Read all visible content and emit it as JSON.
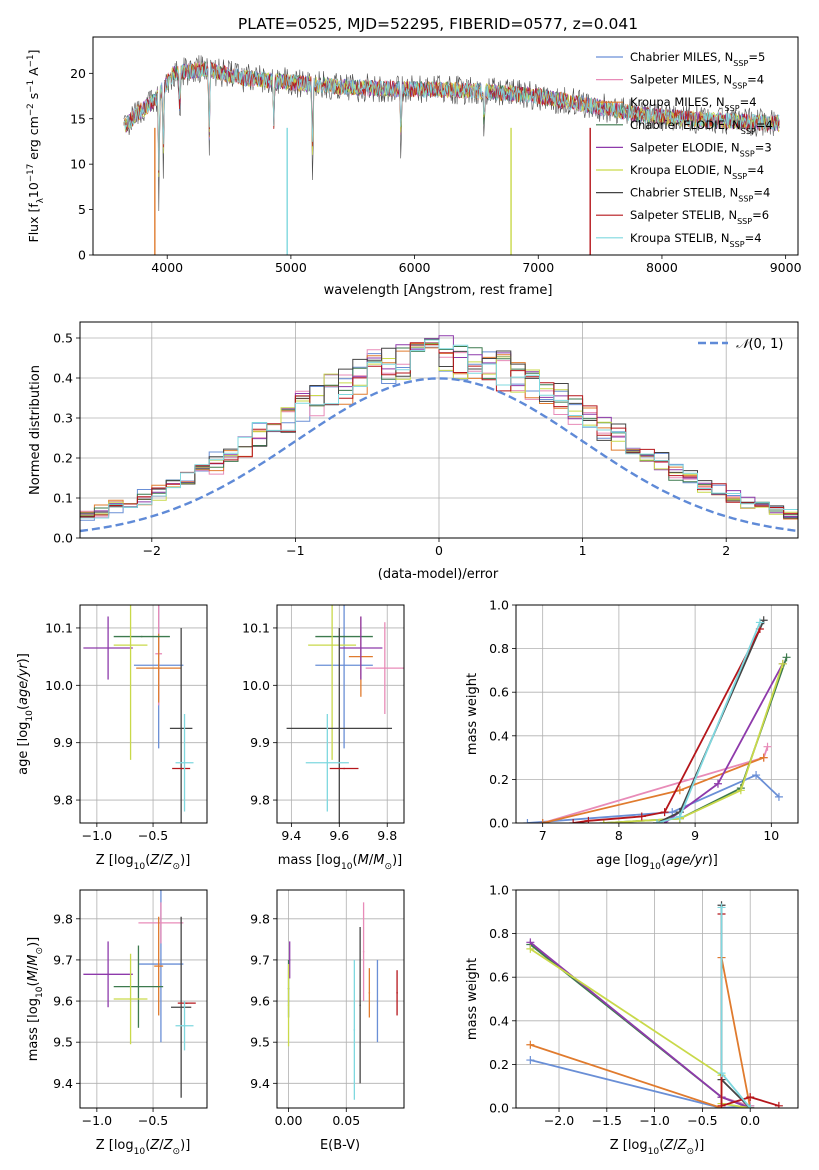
{
  "title": "PLATE=0525, MJD=52295, FIBERID=0577, z=0.041",
  "colors": [
    "#6a8fd6",
    "#e88bb8",
    "#e07b2e",
    "#3d7a4e",
    "#8e3aab",
    "#c9d94a",
    "#444444",
    "#b5161b",
    "#7fd8df"
  ],
  "legend": [
    "Chabrier MILES, N$_{SSP}$=5",
    "Salpeter MILES, N$_{SSP}$=4",
    "Kroupa MILES, N$_{SSP}$=4",
    "Chabrier ELODIE, N$_{SSP}$=4",
    "Salpeter ELODIE, N$_{SSP}$=3",
    "Kroupa ELODIE, N$_{SSP}$=4",
    "Chabrier STELIB, N$_{SSP}$=4",
    "Salpeter STELIB, N$_{SSP}$=6",
    "Kroupa STELIB, N$_{SSP}$=4"
  ],
  "legend_display": [
    {
      "pre": "Chabrier MILES, N",
      "sub": "SSP",
      "post": "=5"
    },
    {
      "pre": "Salpeter MILES, N",
      "sub": "SSP",
      "post": "=4"
    },
    {
      "pre": "Kroupa MILES, N",
      "sub": "SSP",
      "post": "=4"
    },
    {
      "pre": "Chabrier ELODIE, N",
      "sub": "SSP",
      "post": "=4"
    },
    {
      "pre": "Salpeter ELODIE, N",
      "sub": "SSP",
      "post": "=3"
    },
    {
      "pre": "Kroupa ELODIE, N",
      "sub": "SSP",
      "post": "=4"
    },
    {
      "pre": "Chabrier STELIB, N",
      "sub": "SSP",
      "post": "=4"
    },
    {
      "pre": "Salpeter STELIB, N",
      "sub": "SSP",
      "post": "=6"
    },
    {
      "pre": "Kroupa STELIB, N",
      "sub": "SSP",
      "post": "=4"
    }
  ],
  "chart_data": [
    {
      "id": "spectrum",
      "type": "line",
      "xlabel": "wavelength [Angstrom, rest frame]",
      "ylabel": "Flux [f_λ 10^-17 erg cm^-2 s^-1 A^-1]",
      "xlim": [
        3400,
        9100
      ],
      "ylim": [
        0,
        24
      ],
      "xticks": [
        4000,
        5000,
        6000,
        7000,
        8000,
        9000
      ],
      "yticks": [
        0,
        5,
        10,
        15,
        20
      ],
      "data_range": [
        3650,
        8950
      ],
      "continuum": [
        [
          3650,
          14
        ],
        [
          3750,
          15.5
        ],
        [
          3900,
          17
        ],
        [
          4050,
          20
        ],
        [
          4300,
          20.5
        ],
        [
          4600,
          19.5
        ],
        [
          5000,
          19
        ],
        [
          5400,
          18.5
        ],
        [
          5800,
          18.3
        ],
        [
          6200,
          18.2
        ],
        [
          6600,
          18
        ],
        [
          7000,
          17.5
        ],
        [
          7400,
          16.5
        ],
        [
          7800,
          15.5
        ],
        [
          8200,
          15
        ],
        [
          8600,
          14.7
        ],
        [
          8950,
          14.5
        ]
      ],
      "features": [
        [
          3933,
          13
        ],
        [
          3968,
          9
        ],
        [
          4102,
          6
        ],
        [
          4340,
          10
        ],
        [
          4861,
          7
        ],
        [
          5175,
          11
        ],
        [
          5890,
          8
        ],
        [
          6563,
          6
        ]
      ]
    },
    {
      "id": "residuals",
      "type": "histogram",
      "xlabel": "(data-model)/error",
      "ylabel": "Normed distribution",
      "xlim": [
        -2.5,
        2.5
      ],
      "ylim": [
        0,
        0.54
      ],
      "xticks": [
        -2,
        -1,
        0,
        1,
        2
      ],
      "yticks": [
        0.0,
        0.1,
        0.2,
        0.3,
        0.4,
        0.5
      ],
      "bin_width": 0.1,
      "reference_label": "$\\mathcal{N}(0,1)$",
      "reference": "gaussian(0,1)"
    },
    {
      "id": "age-vs-Z",
      "type": "errorbar",
      "xlabel": "Z [log10(Z/Z☉)]",
      "ylabel": "age  [log10(age/yr)]",
      "xlim": [
        -1.15,
        -0.02
      ],
      "ylim": [
        9.76,
        10.14
      ],
      "xticks": [
        -1.0,
        -0.5
      ],
      "yticks": [
        9.8,
        9.9,
        10.0,
        10.1
      ],
      "points": [
        {
          "x": -0.45,
          "y": 10.035,
          "xerr": 0.22,
          "yerr": 0.145
        },
        {
          "x": -0.45,
          "y": 10.055,
          "xerr": 0.03,
          "yerr": 0.09
        },
        {
          "x": -0.45,
          "y": 10.03,
          "xerr": 0.2,
          "yerr": 0.06
        },
        {
          "x": -0.6,
          "y": 10.085,
          "xerr": 0.25,
          "yerr": 0.0
        },
        {
          "x": -0.9,
          "y": 10.065,
          "xerr": 0.22,
          "yerr": 0.055
        },
        {
          "x": -0.7,
          "y": 10.07,
          "xerr": 0.15,
          "yerr": 0.2
        },
        {
          "x": -0.25,
          "y": 9.925,
          "xerr": 0.1,
          "yerr": 0.175
        },
        {
          "x": -0.25,
          "y": 9.855,
          "xerr": 0.08,
          "yerr": 0.0
        },
        {
          "x": -0.22,
          "y": 9.865,
          "xerr": 0.08,
          "yerr": 0.085
        }
      ]
    },
    {
      "id": "age-vs-mass",
      "type": "errorbar",
      "xlabel": "mass [log10(M/M☉)]",
      "ylabel": "",
      "xlim": [
        9.34,
        9.87
      ],
      "ylim": [
        9.76,
        10.14
      ],
      "xticks": [
        9.4,
        9.6,
        9.8
      ],
      "yticks": [
        9.8,
        9.9,
        10.0,
        10.1
      ],
      "points": [
        {
          "x": 9.62,
          "y": 10.035,
          "xerr": 0.12,
          "yerr": 0.145
        },
        {
          "x": 9.79,
          "y": 10.03,
          "xerr": 0.08,
          "yerr": 0.08
        },
        {
          "x": 9.69,
          "y": 10.05,
          "xerr": 0.05,
          "yerr": 0.07
        },
        {
          "x": 9.62,
          "y": 10.085,
          "xerr": 0.12,
          "yerr": 0.0
        },
        {
          "x": 9.69,
          "y": 10.065,
          "xerr": 0.09,
          "yerr": 0.055
        },
        {
          "x": 9.57,
          "y": 10.07,
          "xerr": 0.1,
          "yerr": 0.2
        },
        {
          "x": 9.6,
          "y": 9.925,
          "xerr": 0.22,
          "yerr": 0.175
        },
        {
          "x": 9.62,
          "y": 9.855,
          "xerr": 0.06,
          "yerr": 0.0
        },
        {
          "x": 9.55,
          "y": 9.865,
          "xerr": 0.09,
          "yerr": 0.085
        }
      ]
    },
    {
      "id": "weight-vs-age",
      "type": "line",
      "xlabel": "age  [log10(age/yr)]",
      "ylabel": "mass weight",
      "xlim": [
        6.65,
        10.35
      ],
      "ylim": [
        0,
        1.0
      ],
      "xticks": [
        7,
        8,
        9,
        10
      ],
      "yticks": [
        0.0,
        0.2,
        0.4,
        0.6,
        0.8,
        1.0
      ],
      "series": [
        {
          "x": [
            6.8,
            8.7,
            9.8,
            10.1
          ],
          "y": [
            0.0,
            0.05,
            0.22,
            0.12
          ]
        },
        {
          "x": [
            7.0,
            9.9,
            9.95
          ],
          "y": [
            0.0,
            0.3,
            0.35
          ]
        },
        {
          "x": [
            7.0,
            8.8,
            9.9
          ],
          "y": [
            0.0,
            0.15,
            0.3
          ]
        },
        {
          "x": [
            7.8,
            8.8,
            9.6,
            10.2
          ],
          "y": [
            0.0,
            0.02,
            0.16,
            0.76
          ]
        },
        {
          "x": [
            8.6,
            9.3,
            10.15
          ],
          "y": [
            0.0,
            0.18,
            0.73
          ]
        },
        {
          "x": [
            7.8,
            8.8,
            9.6,
            10.15
          ],
          "y": [
            0.0,
            0.02,
            0.15,
            0.73
          ]
        },
        {
          "x": [
            8.5,
            8.8,
            9.9
          ],
          "y": [
            0.0,
            0.05,
            0.93
          ]
        },
        {
          "x": [
            7.4,
            7.6,
            8.3,
            8.6,
            9.85
          ],
          "y": [
            0.0,
            0.01,
            0.03,
            0.05,
            0.89
          ]
        },
        {
          "x": [
            8.5,
            8.8,
            9.85
          ],
          "y": [
            0.0,
            0.03,
            0.92
          ]
        }
      ]
    },
    {
      "id": "mass-vs-Z",
      "type": "errorbar",
      "xlabel": "Z [log10(Z/Z☉)]",
      "ylabel": "mass [log10(M/M☉)]",
      "xlim": [
        -1.15,
        -0.02
      ],
      "ylim": [
        9.34,
        9.87
      ],
      "xticks": [
        -1.0,
        -0.5
      ],
      "yticks": [
        9.4,
        9.5,
        9.6,
        9.7,
        9.8
      ],
      "points": [
        {
          "x": -0.43,
          "y": 9.69,
          "xerr": 0.2,
          "yerr": 0.19
        },
        {
          "x": -0.43,
          "y": 9.79,
          "xerr": 0.2,
          "yerr": 0.05
        },
        {
          "x": -0.45,
          "y": 9.685,
          "xerr": 0.04,
          "yerr": 0.12
        },
        {
          "x": -0.63,
          "y": 9.635,
          "xerr": 0.22,
          "yerr": 0.1
        },
        {
          "x": -0.9,
          "y": 9.665,
          "xerr": 0.22,
          "yerr": 0.08
        },
        {
          "x": -0.7,
          "y": 9.605,
          "xerr": 0.15,
          "yerr": 0.11
        },
        {
          "x": -0.25,
          "y": 9.585,
          "xerr": 0.09,
          "yerr": 0.22
        },
        {
          "x": -0.2,
          "y": 9.595,
          "xerr": 0.08,
          "yerr": 0.0
        },
        {
          "x": -0.22,
          "y": 9.54,
          "xerr": 0.08,
          "yerr": 0.06
        }
      ]
    },
    {
      "id": "mass-vs-EBV",
      "type": "errorbar",
      "xlabel": "E(B-V)",
      "ylabel": "",
      "xlim": [
        -0.01,
        0.1
      ],
      "ylim": [
        9.34,
        9.87
      ],
      "xticks": [
        0.0,
        0.05
      ],
      "yticks": [
        9.4,
        9.5,
        9.6,
        9.7,
        9.8
      ],
      "points": [
        {
          "x": 0.077,
          "y": 9.6,
          "xerr": 0,
          "yerr": 0.1
        },
        {
          "x": 0.065,
          "y": 9.72,
          "xerr": 0,
          "yerr": 0.12
        },
        {
          "x": 0.07,
          "y": 9.62,
          "xerr": 0,
          "yerr": 0.06
        },
        {
          "x": 0.0,
          "y": 9.63,
          "xerr": 0,
          "yerr": 0.07
        },
        {
          "x": 0.001,
          "y": 9.7,
          "xerr": 0,
          "yerr": 0.045
        },
        {
          "x": 0.0,
          "y": 9.59,
          "xerr": 0,
          "yerr": 0.1
        },
        {
          "x": 0.062,
          "y": 9.59,
          "xerr": 0,
          "yerr": 0.19
        },
        {
          "x": 0.094,
          "y": 9.62,
          "xerr": 0,
          "yerr": 0.055
        },
        {
          "x": 0.057,
          "y": 9.53,
          "xerr": 0,
          "yerr": 0.17
        }
      ]
    },
    {
      "id": "weight-vs-Z",
      "type": "line",
      "xlabel": "Z [log10(Z/Z☉)]",
      "ylabel": "mass weight",
      "xlim": [
        -2.45,
        0.5
      ],
      "ylim": [
        0,
        1.0
      ],
      "xticks": [
        -2.0,
        -1.5,
        -1.0,
        -0.5,
        0.0
      ],
      "yticks": [
        0.0,
        0.2,
        0.4,
        0.6,
        0.8,
        1.0
      ],
      "series": [
        {
          "x": [
            -2.3,
            -0.3,
            0.0
          ],
          "y": [
            0.22,
            0.0,
            0.01
          ]
        },
        {
          "x": [
            -0.3,
            -0.3,
            0.0
          ],
          "y": [
            0.69,
            0.05,
            0.01
          ]
        },
        {
          "x": [
            -2.3,
            -0.3,
            -0.3,
            0.0
          ],
          "y": [
            0.29,
            0.0,
            0.69,
            0.0
          ]
        },
        {
          "x": [
            -2.3,
            -0.3,
            0.0
          ],
          "y": [
            0.75,
            0.05,
            0.0
          ]
        },
        {
          "x": [
            -2.3,
            -0.3,
            0.0
          ],
          "y": [
            0.76,
            0.05,
            0.0
          ]
        },
        {
          "x": [
            -2.3,
            -0.3,
            -0.3,
            0.0
          ],
          "y": [
            0.73,
            0.15,
            0.02,
            0.0
          ]
        },
        {
          "x": [
            -0.3,
            -0.3,
            0.0
          ],
          "y": [
            0.93,
            0.13,
            0.0
          ]
        },
        {
          "x": [
            -0.3,
            -0.3,
            0.0,
            0.3
          ],
          "y": [
            0.89,
            0.01,
            0.05,
            0.01
          ]
        },
        {
          "x": [
            -0.3,
            -0.3,
            0.0
          ],
          "y": [
            0.92,
            0.16,
            0.0
          ]
        }
      ]
    }
  ]
}
